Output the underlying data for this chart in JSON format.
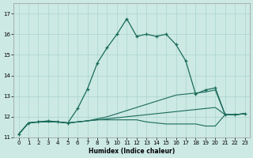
{
  "xlabel": "Humidex (Indice chaleur)",
  "bg_color": "#cce9e4",
  "grid_color": "#aad4cc",
  "line_color": "#1a6b5a",
  "line1_x": [
    0,
    1,
    2,
    3,
    4,
    5,
    6,
    7,
    8,
    9,
    10,
    11,
    12,
    13,
    14,
    15,
    16,
    17,
    18,
    19,
    20,
    21,
    22,
    23
  ],
  "line1_y": [
    11.15,
    11.7,
    11.75,
    11.8,
    11.75,
    11.7,
    12.4,
    13.35,
    14.6,
    15.35,
    16.0,
    16.75,
    15.9,
    16.0,
    15.9,
    16.0,
    15.5,
    14.7,
    13.1,
    13.3,
    13.4,
    12.1,
    12.1,
    12.15
  ],
  "line2_x": [
    0,
    1,
    2,
    3,
    4,
    5,
    6,
    7,
    8,
    9,
    10,
    11,
    12,
    13,
    14,
    15,
    16,
    17,
    18,
    19,
    20,
    21,
    22,
    23
  ],
  "line2_y": [
    11.15,
    11.7,
    11.75,
    11.75,
    11.75,
    11.7,
    11.75,
    11.8,
    11.85,
    11.9,
    11.95,
    12.0,
    12.05,
    12.1,
    12.15,
    12.2,
    12.25,
    12.3,
    12.35,
    12.4,
    12.45,
    12.1,
    12.1,
    12.15
  ],
  "line3_x": [
    0,
    1,
    2,
    3,
    4,
    5,
    6,
    7,
    8,
    9,
    10,
    11,
    12,
    13,
    14,
    15,
    16,
    17,
    18,
    19,
    20,
    21,
    22,
    23
  ],
  "line3_y": [
    11.15,
    11.7,
    11.75,
    11.75,
    11.75,
    11.7,
    11.75,
    11.8,
    11.9,
    12.0,
    12.15,
    12.3,
    12.45,
    12.6,
    12.75,
    12.9,
    13.05,
    13.1,
    13.15,
    13.2,
    13.3,
    12.1,
    12.1,
    12.15
  ],
  "line4_x": [
    0,
    1,
    2,
    3,
    4,
    5,
    6,
    7,
    8,
    9,
    10,
    11,
    12,
    13,
    14,
    15,
    16,
    17,
    18,
    19,
    20,
    21,
    22,
    23
  ],
  "line4_y": [
    11.15,
    11.7,
    11.75,
    11.75,
    11.75,
    11.7,
    11.75,
    11.8,
    11.85,
    11.85,
    11.85,
    11.85,
    11.85,
    11.75,
    11.7,
    11.65,
    11.65,
    11.65,
    11.65,
    11.55,
    11.55,
    12.1,
    12.1,
    12.15
  ],
  "xlim": [
    -0.5,
    23.5
  ],
  "ylim": [
    11.0,
    17.5
  ],
  "yticks": [
    11,
    12,
    13,
    14,
    15,
    16,
    17
  ],
  "xticks": [
    0,
    1,
    2,
    3,
    4,
    5,
    6,
    7,
    8,
    9,
    10,
    11,
    12,
    13,
    14,
    15,
    16,
    17,
    18,
    19,
    20,
    21,
    22,
    23
  ]
}
